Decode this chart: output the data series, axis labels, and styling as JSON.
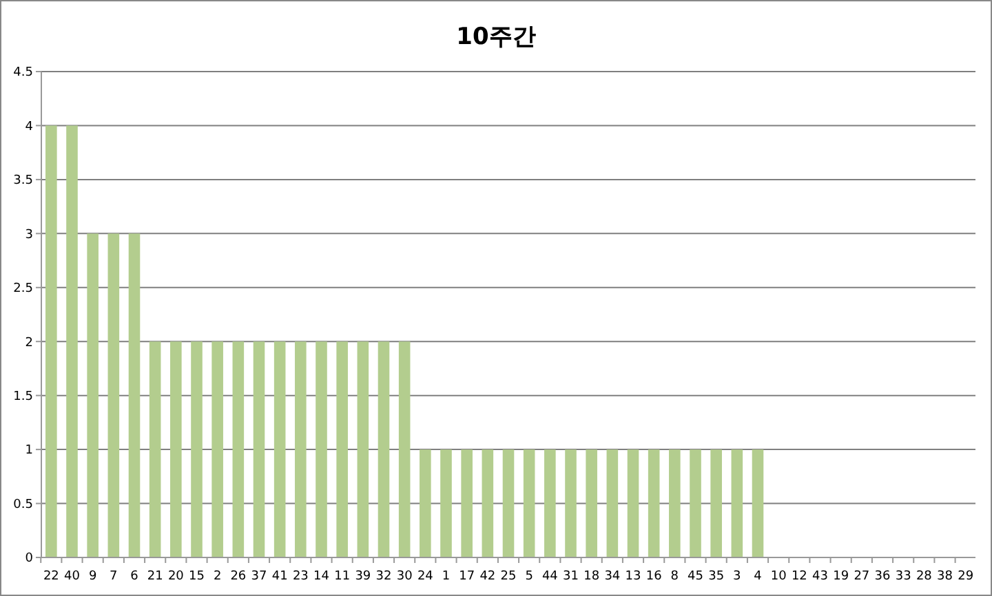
{
  "chart_data": {
    "type": "bar",
    "title": "10주간",
    "categories": [
      "22",
      "40",
      "9",
      "7",
      "6",
      "21",
      "20",
      "15",
      "2",
      "26",
      "37",
      "41",
      "23",
      "14",
      "11",
      "39",
      "32",
      "30",
      "24",
      "1",
      "17",
      "42",
      "25",
      "5",
      "44",
      "31",
      "18",
      "34",
      "13",
      "16",
      "8",
      "45",
      "35",
      "3",
      "4",
      "10",
      "12",
      "43",
      "19",
      "27",
      "36",
      "33",
      "28",
      "38",
      "29"
    ],
    "values": [
      4,
      4,
      3,
      3,
      3,
      2,
      2,
      2,
      2,
      2,
      2,
      2,
      2,
      2,
      2,
      2,
      2,
      2,
      1,
      1,
      1,
      1,
      1,
      1,
      1,
      1,
      1,
      1,
      1,
      1,
      1,
      1,
      1,
      1,
      1,
      0,
      0,
      0,
      0,
      0,
      0,
      0,
      0,
      0,
      0
    ],
    "color": "#b3cd8e",
    "ylim": [
      0,
      4.5
    ],
    "yticks": [
      0,
      0.5,
      1,
      1.5,
      2,
      2.5,
      3,
      3.5,
      4,
      4.5
    ],
    "grid": "y"
  }
}
